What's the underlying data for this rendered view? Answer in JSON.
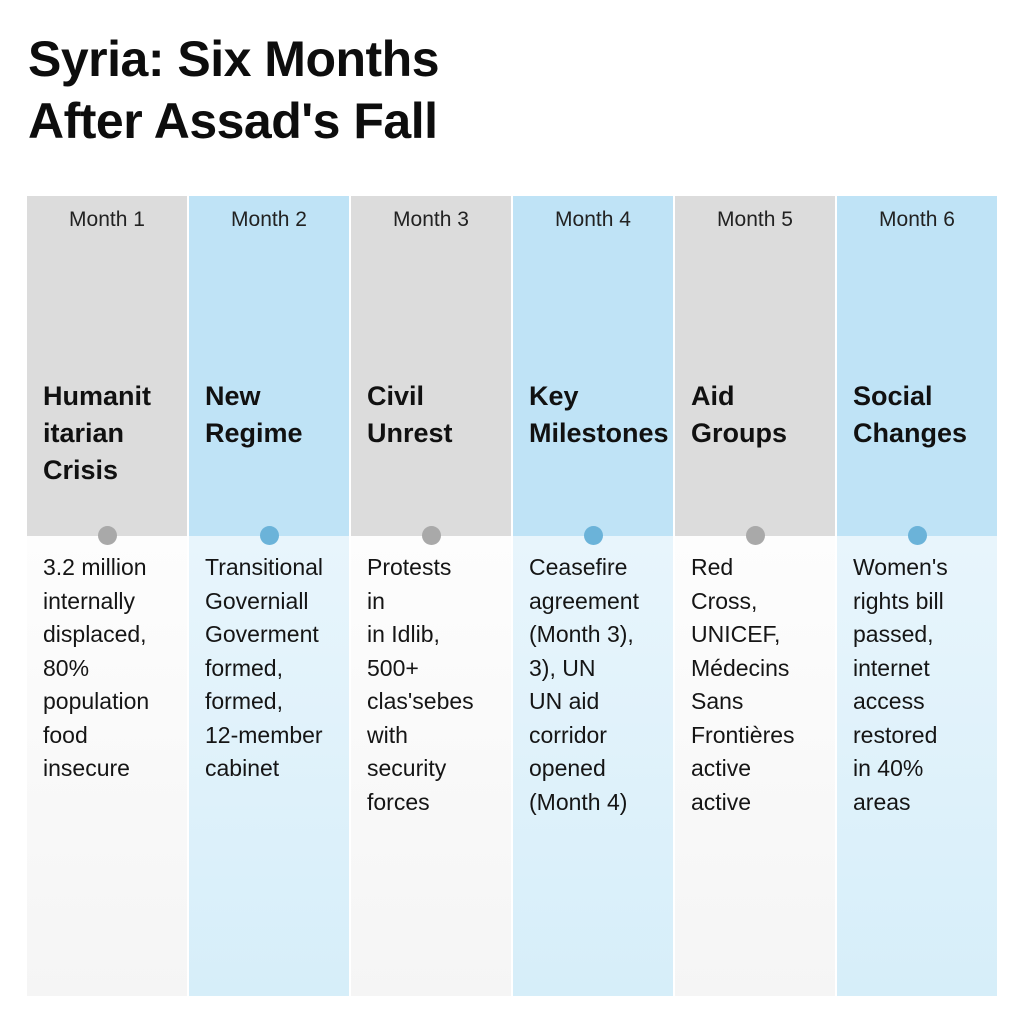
{
  "title": [
    "Syria: Six Months",
    "After Assad's Fall"
  ],
  "colors": {
    "gray_header": "#dcdcdc",
    "blue_header": "#bfe3f6",
    "gray_dot": "#a9a9a9",
    "blue_dot": "#6bb3d9"
  },
  "columns": [
    {
      "month": "Month 1",
      "style": "gray",
      "heading": [
        "Humanit",
        "itarian",
        "Crisis"
      ],
      "body": [
        "3.2 million",
        "internally",
        "displaced,",
        "80%",
        "population",
        "food",
        "insecure"
      ]
    },
    {
      "month": "Month 2",
      "style": "blue",
      "heading": [
        "New",
        "Regime"
      ],
      "body": [
        "Transitional",
        "Governiall",
        "Goverment",
        "formed,",
        "formed,",
        "12-member",
        "cabinet"
      ]
    },
    {
      "month": "Month 3",
      "style": "gray",
      "heading": [
        "Civil",
        "Unrest"
      ],
      "body": [
        "Protests",
        "in",
        "in Idlib,",
        "500+",
        "clas'sebes",
        "with",
        "security",
        "forces"
      ]
    },
    {
      "month": "Month 4",
      "style": "blue",
      "heading": [
        "Key",
        "Milestones"
      ],
      "body": [
        "Ceasefire",
        "agreement",
        "(Month 3),",
        "3), UN",
        "UN aid",
        "corridor",
        "opened",
        "(Month 4)"
      ]
    },
    {
      "month": "Month 5",
      "style": "gray",
      "heading": [
        "Aid",
        "Groups"
      ],
      "body": [
        "Red",
        "Cross,",
        "UNICEF,",
        "Médecins",
        "Sans",
        "Frontières",
        "active",
        "active"
      ]
    },
    {
      "month": "Month 6",
      "style": "blue",
      "heading": [
        "Social",
        "Changes"
      ],
      "body": [
        "Women's",
        "rights bill",
        "passed,",
        "internet",
        "access",
        "restored",
        "in 40%",
        "areas"
      ]
    }
  ]
}
